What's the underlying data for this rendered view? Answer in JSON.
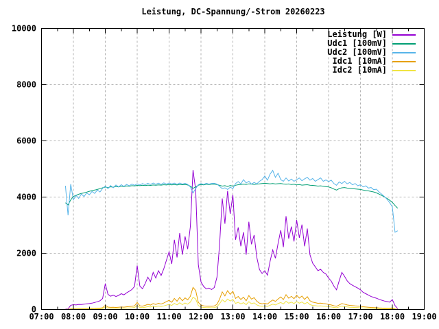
{
  "title": "Leistung, DC-Spannung/-Strom 20260223",
  "background_color": "#ffffff",
  "chart_data": {
    "type": "line",
    "title": "Leistung, DC-Spannung/-Strom 20260223",
    "xlabel": "",
    "ylabel": "",
    "x_range_hours": [
      7,
      19
    ],
    "y_range": [
      0,
      10000
    ],
    "x_ticks": [
      {
        "hour": 7,
        "label": "07:00"
      },
      {
        "hour": 8,
        "label": "08:00"
      },
      {
        "hour": 9,
        "label": "09:00"
      },
      {
        "hour": 10,
        "label": "10:00"
      },
      {
        "hour": 11,
        "label": "11:00"
      },
      {
        "hour": 12,
        "label": "12:00"
      },
      {
        "hour": 13,
        "label": "13:00"
      },
      {
        "hour": 14,
        "label": "14:00"
      },
      {
        "hour": 15,
        "label": "15:00"
      },
      {
        "hour": 16,
        "label": "16:00"
      },
      {
        "hour": 17,
        "label": "17:00"
      },
      {
        "hour": 18,
        "label": "18:00"
      },
      {
        "hour": 19,
        "label": "19:00"
      }
    ],
    "y_ticks": [
      {
        "value": 0,
        "label": "0"
      },
      {
        "value": 2000,
        "label": "2000"
      },
      {
        "value": 4000,
        "label": "4000"
      },
      {
        "value": 6000,
        "label": "6000"
      },
      {
        "value": 8000,
        "label": "8000"
      },
      {
        "value": 10000,
        "label": "10000"
      }
    ],
    "grid": {
      "on": true,
      "color": "#b3b3b3",
      "dashed": true
    },
    "axis_color": "#000000",
    "legend_position": "top-right",
    "minor_x_tick_every_hours": 0.5,
    "time_start_minute": 465,
    "time_step_minutes": 5,
    "series": [
      {
        "name": "Leistung",
        "label": "Leistung [W]",
        "unit": "W",
        "color": "#9400d3",
        "values": [
          15,
          20,
          150,
          170,
          160,
          180,
          175,
          190,
          200,
          210,
          225,
          250,
          275,
          310,
          390,
          920,
          540,
          470,
          510,
          460,
          500,
          560,
          520,
          590,
          650,
          710,
          820,
          1560,
          830,
          740,
          920,
          1150,
          990,
          1320,
          1120,
          1380,
          1210,
          1450,
          1750,
          2050,
          1620,
          2480,
          1850,
          2720,
          1950,
          2600,
          2150,
          2950,
          4960,
          4250,
          1600,
          980,
          820,
          730,
          760,
          710,
          780,
          1150,
          2300,
          3950,
          3050,
          4220,
          3400,
          4080,
          2480,
          2920,
          2250,
          2750,
          1950,
          3120,
          2320,
          2650,
          1850,
          1420,
          1280,
          1380,
          1220,
          1720,
          2120,
          1820,
          2350,
          2820,
          2220,
          3320,
          2520,
          2950,
          2420,
          3180,
          2550,
          3020,
          2250,
          2880,
          1950,
          1650,
          1520,
          1380,
          1430,
          1320,
          1260,
          1120,
          1010,
          830,
          700,
          1020,
          1320,
          1180,
          1020,
          920,
          860,
          810,
          760,
          700,
          610,
          560,
          510,
          460,
          430,
          400,
          360,
          330,
          300,
          280,
          260,
          350,
          140,
          30
        ]
      },
      {
        "name": "Udc1",
        "label": "Udc1 [100mV]",
        "unit": "100mV",
        "color": "#009e73",
        "values": [
          3800,
          3720,
          3900,
          4020,
          4060,
          4100,
          4130,
          4150,
          4175,
          4205,
          4230,
          4250,
          4270,
          4300,
          4330,
          4355,
          4335,
          4365,
          4350,
          4375,
          4360,
          4385,
          4370,
          4395,
          4385,
          4405,
          4395,
          4415,
          4405,
          4420,
          4410,
          4425,
          4415,
          4430,
          4420,
          4435,
          4425,
          4440,
          4430,
          4445,
          4435,
          4445,
          4430,
          4450,
          4440,
          4445,
          4430,
          4390,
          4310,
          4360,
          4420,
          4445,
          4435,
          4455,
          4445,
          4455,
          4460,
          4445,
          4420,
          4390,
          4405,
          4375,
          4410,
          4390,
          4420,
          4440,
          4450,
          4460,
          4450,
          4470,
          4460,
          4450,
          4460,
          4470,
          4480,
          4490,
          4480,
          4470,
          4480,
          4465,
          4475,
          4480,
          4465,
          4455,
          4465,
          4445,
          4455,
          4435,
          4445,
          4425,
          4435,
          4440,
          4420,
          4415,
          4405,
          4390,
          4400,
          4385,
          4370,
          4360,
          4330,
          4285,
          4250,
          4300,
          4330,
          4340,
          4320,
          4310,
          4300,
          4290,
          4280,
          4270,
          4250,
          4230,
          4220,
          4200,
          4180,
          4150,
          4105,
          4055,
          4005,
          3950,
          3885,
          3810,
          3700,
          3600
        ]
      },
      {
        "name": "Udc2",
        "label": "Udc2 [100mV]",
        "unit": "100mV",
        "color": "#56b4e9",
        "values": [
          4400,
          3350,
          4460,
          3900,
          4060,
          3950,
          4110,
          4020,
          4150,
          4080,
          4200,
          4130,
          4250,
          4180,
          4310,
          4390,
          4300,
          4410,
          4330,
          4430,
          4360,
          4440,
          4380,
          4450,
          4400,
          4460,
          4420,
          4470,
          4430,
          4480,
          4440,
          4490,
          4450,
          4500,
          4455,
          4495,
          4450,
          4505,
          4460,
          4500,
          4465,
          4495,
          4455,
          4500,
          4460,
          4490,
          4450,
          4360,
          4150,
          4300,
          4440,
          4480,
          4450,
          4490,
          4460,
          4485,
          4490,
          4460,
          4380,
          4300,
          4330,
          4270,
          4350,
          4300,
          4480,
          4550,
          4470,
          4620,
          4500,
          4560,
          4460,
          4520,
          4470,
          4560,
          4620,
          4750,
          4600,
          4820,
          4950,
          4700,
          4850,
          4620,
          4560,
          4680,
          4570,
          4640,
          4560,
          4620,
          4680,
          4580,
          4650,
          4700,
          4600,
          4660,
          4560,
          4620,
          4680,
          4560,
          4610,
          4550,
          4600,
          4480,
          4420,
          4540,
          4480,
          4560,
          4470,
          4520,
          4440,
          4480,
          4400,
          4440,
          4360,
          4400,
          4320,
          4340,
          4260,
          4280,
          4180,
          4100,
          4020,
          3920,
          3800,
          3650,
          2750,
          2800
        ]
      },
      {
        "name": "Idc1",
        "label": "Idc1 [10mA]",
        "unit": "10mA",
        "color": "#e69f00",
        "values": [
          3,
          4,
          24,
          27,
          25,
          29,
          28,
          30,
          32,
          33,
          36,
          40,
          44,
          49,
          62,
          148,
          86,
          75,
          81,
          73,
          80,
          89,
          83,
          94,
          103,
          113,
          130,
          248,
          132,
          117,
          146,
          182,
          157,
          209,
          178,
          219,
          192,
          230,
          277,
          325,
          257,
          393,
          293,
          431,
          309,
          412,
          341,
          468,
          786,
          673,
          253,
          155,
          130,
          116,
          120,
          112,
          124,
          182,
          364,
          626,
          483,
          668,
          539,
          646,
          393,
          463,
          356,
          436,
          309,
          494,
          368,
          420,
          293,
          225,
          203,
          219,
          193,
          272,
          336,
          288,
          372,
          447,
          352,
          526,
          399,
          467,
          383,
          504,
          404,
          478,
          356,
          456,
          309,
          261,
          241,
          219,
          227,
          209,
          200,
          177,
          160,
          131,
          111,
          162,
          209,
          187,
          162,
          146,
          136,
          128,
          120,
          111,
          97,
          89,
          81,
          73,
          68,
          63,
          57,
          52,
          48,
          44,
          41,
          55,
          22,
          5
        ]
      },
      {
        "name": "Idc2",
        "label": "Idc2 [10mA]",
        "unit": "10mA",
        "color": "#f0e442",
        "values": [
          1,
          2,
          13,
          15,
          14,
          16,
          15,
          17,
          18,
          18,
          20,
          22,
          24,
          27,
          34,
          81,
          48,
          41,
          45,
          40,
          44,
          49,
          46,
          52,
          57,
          62,
          72,
          137,
          73,
          65,
          81,
          101,
          87,
          116,
          99,
          121,
          106,
          128,
          154,
          180,
          143,
          218,
          163,
          239,
          172,
          229,
          189,
          260,
          437,
          374,
          141,
          86,
          72,
          64,
          67,
          62,
          69,
          101,
          202,
          348,
          268,
          371,
          299,
          359,
          218,
          257,
          198,
          242,
          172,
          275,
          204,
          233,
          163,
          125,
          113,
          121,
          107,
          151,
          187,
          160,
          207,
          248,
          195,
          292,
          222,
          260,
          213,
          280,
          224,
          266,
          198,
          253,
          172,
          145,
          134,
          121,
          126,
          116,
          111,
          99,
          89,
          73,
          62,
          90,
          116,
          104,
          90,
          81,
          76,
          71,
          67,
          62,
          54,
          49,
          45,
          40,
          38,
          35,
          32,
          29,
          26,
          25,
          23,
          31,
          12,
          3
        ]
      }
    ]
  }
}
